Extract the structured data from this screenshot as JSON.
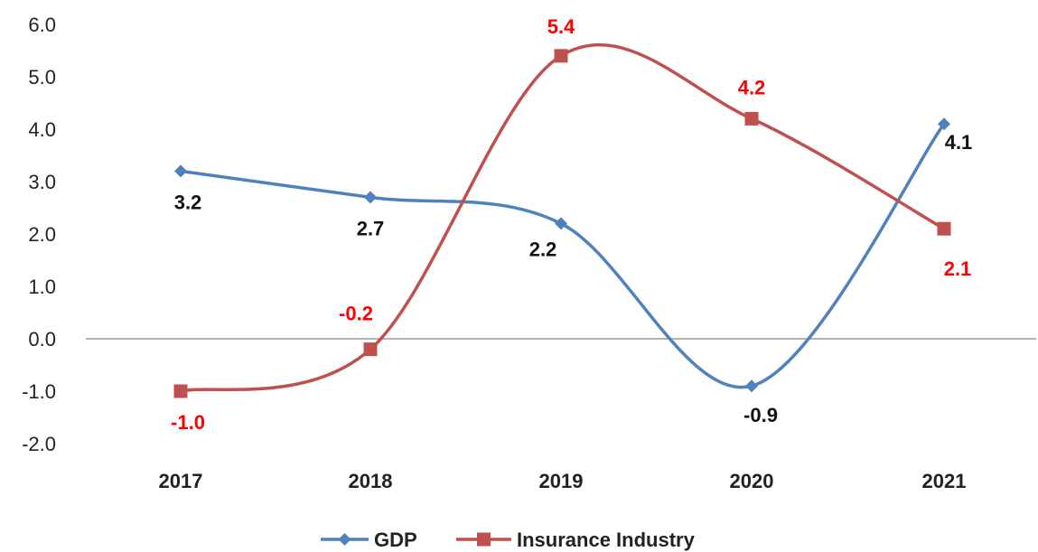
{
  "chart_data": {
    "type": "line",
    "smooth": true,
    "categories": [
      "2017",
      "2018",
      "2019",
      "2020",
      "2021"
    ],
    "series": [
      {
        "name": "GDP",
        "values": [
          3.2,
          2.7,
          2.2,
          -0.9,
          4.1
        ],
        "labels": [
          "3.2",
          "2.7",
          "2.2",
          "-0.9",
          "4.1"
        ],
        "color": "#4F81BD",
        "label_color": "#111111",
        "marker": "diamond"
      },
      {
        "name": "Insurance Industry",
        "values": [
          -1.0,
          -0.2,
          5.4,
          4.2,
          2.1
        ],
        "labels": [
          "-1.0",
          "-0.2",
          "5.4",
          "4.2",
          "2.1"
        ],
        "color": "#C0504D",
        "label_color": "#FF0000",
        "marker": "square"
      }
    ],
    "ylim": [
      -2.0,
      6.0
    ],
    "yticks": [
      -2.0,
      -1.0,
      0.0,
      1.0,
      2.0,
      3.0,
      4.0,
      5.0,
      6.0
    ],
    "ytick_labels": [
      "-2.0",
      "-1.0",
      "0.0",
      "1.0",
      "2.0",
      "3.0",
      "4.0",
      "5.0",
      "6.0"
    ],
    "grid": false,
    "zero_line": true,
    "legend_position": "bottom"
  }
}
